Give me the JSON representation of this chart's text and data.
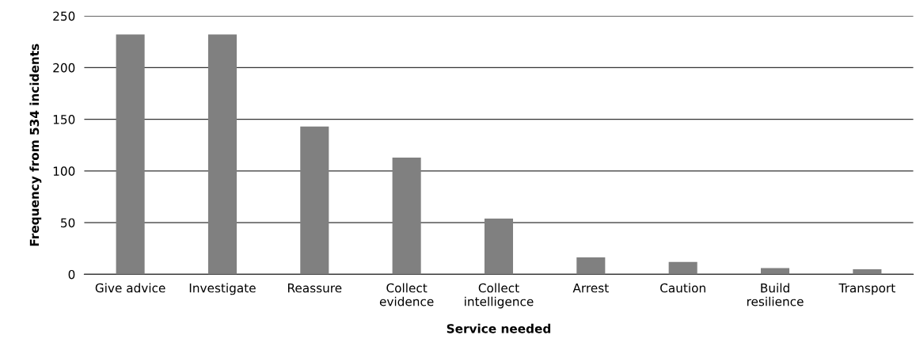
{
  "chart_data": {
    "type": "bar",
    "xlabel": "Service needed",
    "ylabel": "Frequency from 534 incidents",
    "categories": [
      "Give advice",
      "Investigate",
      "Reassure",
      "Collect\nevidence",
      "Collect\nintelligence",
      "Arrest",
      "Caution",
      "Build\nresilience",
      "Transport"
    ],
    "values": [
      232,
      232,
      143,
      113,
      54,
      16.5,
      12,
      6,
      5
    ],
    "color": "#808080",
    "ylim": [
      0,
      250
    ],
    "yticks": [
      0,
      50,
      100,
      150,
      200,
      250
    ],
    "grid": "y",
    "legend": false
  }
}
